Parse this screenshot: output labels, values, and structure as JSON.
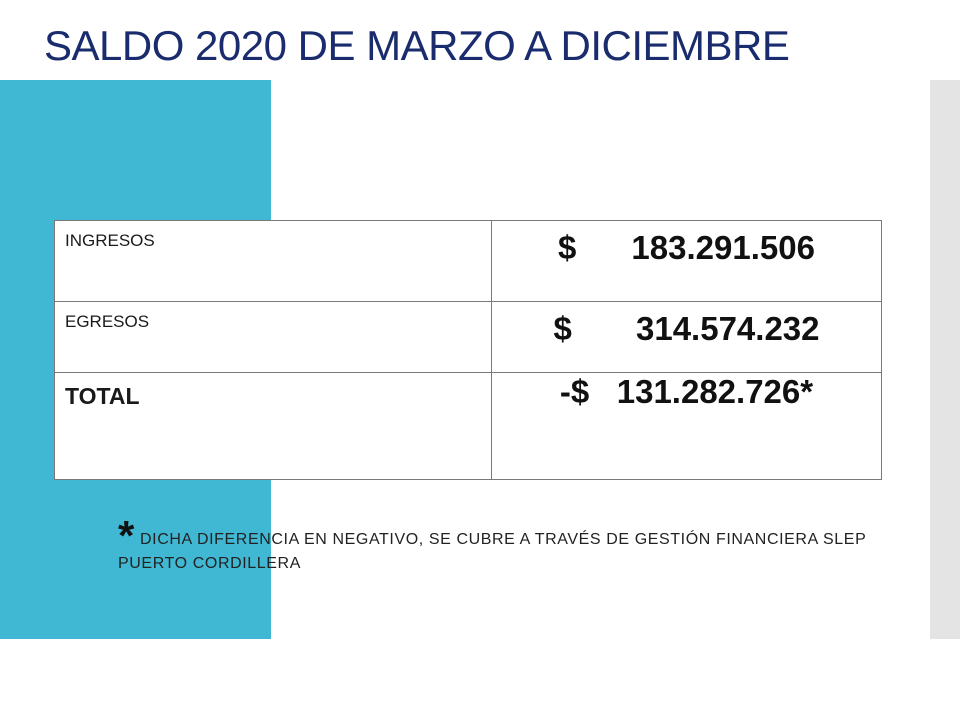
{
  "slide": {
    "title": "SALDO 2020 DE MARZO A DICIEMBRE"
  },
  "table": {
    "rows": [
      {
        "label": "INGRESOS",
        "value": "$      183.291.506"
      },
      {
        "label": "EGRESOS",
        "value": "$       314.574.232"
      },
      {
        "label": "TOTAL",
        "value": "-$   131.282.726*"
      }
    ]
  },
  "footnote": {
    "marker": "*",
    "text": "DICHA DIFERENCIA EN NEGATIVO, SE CUBRE A TRAVÉS DE GESTIÓN FINANCIERA SLEP PUERTO CORDILLERA"
  },
  "colors": {
    "title": "#1a2c6e",
    "accent_block": "#40b8d3",
    "side_bar": "#e4e4e4"
  }
}
